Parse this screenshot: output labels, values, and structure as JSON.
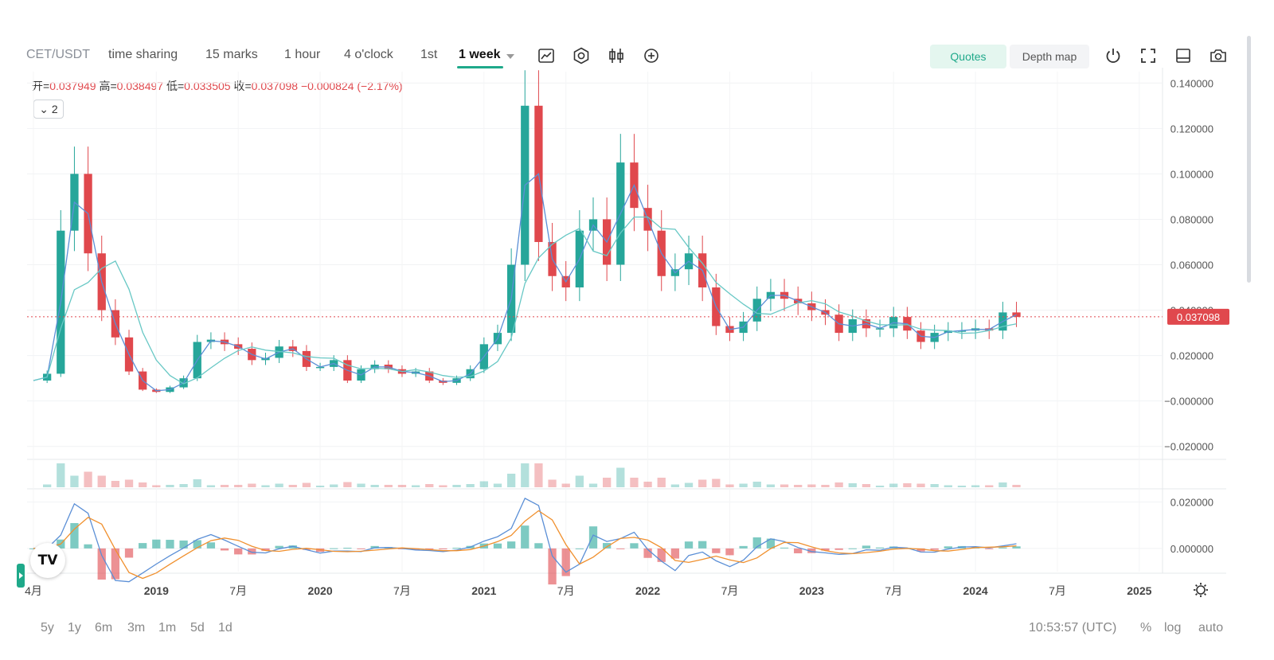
{
  "toolbar": {
    "symbol": "CET/USDT",
    "intervals": [
      "time sharing",
      "15 marks",
      "1 hour",
      "4 o'clock",
      "1st",
      "1 week"
    ],
    "active_interval": "1 week",
    "quotes_label": "Quotes",
    "depth_label": "Depth map"
  },
  "ohlc": {
    "open_label": "开=",
    "open": "0.037949",
    "high_label": "高=",
    "high": "0.038497",
    "low_label": "低=",
    "low": "0.033505",
    "close_label": "收=",
    "close": "0.037098",
    "change": "−0.000824 (−2.17%)"
  },
  "series_toggle": "2",
  "bottom_bar": {
    "ranges": [
      "5y",
      "1y",
      "6m",
      "3m",
      "1m",
      "5d",
      "1d"
    ],
    "clock": "10:53:57 (UTC)",
    "percent": "%",
    "log": "log",
    "auto": "auto"
  },
  "colors": {
    "up": "#26a69a",
    "down": "#e0484d",
    "ma_fast": "#5b8fd6",
    "ma_slow": "#68c8c5",
    "macd_signal": "#f0902e",
    "accent": "#1fa98a"
  },
  "chart_data": {
    "type": "candlestick",
    "symbol": "CET/USDT",
    "interval": "1 week",
    "price_axis": {
      "ticks": [
        "0.140000",
        "0.120000",
        "0.100000",
        "0.080000",
        "0.060000",
        "0.040000",
        "0.020000",
        "−0.000000",
        "−0.020000"
      ],
      "range": [
        -0.025,
        0.145
      ]
    },
    "time_axis": {
      "ticks": [
        "4月",
        "2019",
        "7月",
        "2020",
        "7月",
        "2021",
        "7月",
        "2022",
        "7月",
        "2023",
        "7月",
        "2024",
        "7月",
        "2025"
      ],
      "range": [
        "2018-04",
        "2025-02"
      ]
    },
    "last_price": "0.037098",
    "price_series": {
      "name": "",
      "points": [
        [
          "2018-04",
          0.009
        ],
        [
          "2018-05",
          0.012
        ],
        [
          "2018-06",
          0.075
        ],
        [
          "2018-07",
          0.1
        ],
        [
          "2018-08",
          0.065
        ],
        [
          "2018-09",
          0.04
        ],
        [
          "2018-10",
          0.028
        ],
        [
          "2018-11",
          0.013
        ],
        [
          "2018-12",
          0.005
        ],
        [
          "2019-01",
          0.004
        ],
        [
          "2019-02",
          0.006
        ],
        [
          "2019-03",
          0.01
        ],
        [
          "2019-04",
          0.026
        ],
        [
          "2019-05",
          0.027
        ],
        [
          "2019-06",
          0.025
        ],
        [
          "2019-07",
          0.023
        ],
        [
          "2019-08",
          0.018
        ],
        [
          "2019-09",
          0.019
        ],
        [
          "2019-10",
          0.024
        ],
        [
          "2019-11",
          0.022
        ],
        [
          "2019-12",
          0.015
        ],
        [
          "2020-01",
          0.015
        ],
        [
          "2020-02",
          0.018
        ],
        [
          "2020-03",
          0.009
        ],
        [
          "2020-04",
          0.014
        ],
        [
          "2020-05",
          0.016
        ],
        [
          "2020-06",
          0.014
        ],
        [
          "2020-07",
          0.012
        ],
        [
          "2020-08",
          0.013
        ],
        [
          "2020-09",
          0.009
        ],
        [
          "2020-10",
          0.008
        ],
        [
          "2020-11",
          0.01
        ],
        [
          "2020-12",
          0.014
        ],
        [
          "2021-01",
          0.025
        ],
        [
          "2021-02",
          0.03
        ],
        [
          "2021-03",
          0.06
        ],
        [
          "2021-04",
          0.13
        ],
        [
          "2021-05",
          0.07
        ],
        [
          "2021-06",
          0.055
        ],
        [
          "2021-07",
          0.05
        ],
        [
          "2021-08",
          0.075
        ],
        [
          "2021-09",
          0.08
        ],
        [
          "2021-10",
          0.06
        ],
        [
          "2021-11",
          0.105
        ],
        [
          "2021-12",
          0.085
        ],
        [
          "2022-01",
          0.075
        ],
        [
          "2022-02",
          0.055
        ],
        [
          "2022-03",
          0.058
        ],
        [
          "2022-04",
          0.065
        ],
        [
          "2022-05",
          0.05
        ],
        [
          "2022-06",
          0.033
        ],
        [
          "2022-07",
          0.03
        ],
        [
          "2022-08",
          0.035
        ],
        [
          "2022-09",
          0.045
        ],
        [
          "2022-10",
          0.048
        ],
        [
          "2022-11",
          0.045
        ],
        [
          "2022-12",
          0.043
        ],
        [
          "2023-01",
          0.04
        ],
        [
          "2023-02",
          0.038
        ],
        [
          "2023-03",
          0.03
        ],
        [
          "2023-04",
          0.036
        ],
        [
          "2023-05",
          0.032
        ],
        [
          "2023-06",
          0.032
        ],
        [
          "2023-07",
          0.037
        ],
        [
          "2023-08",
          0.031
        ],
        [
          "2023-09",
          0.026
        ],
        [
          "2023-10",
          0.03
        ],
        [
          "2023-11",
          0.031
        ],
        [
          "2023-12",
          0.031
        ],
        [
          "2024-01",
          0.032
        ],
        [
          "2024-02",
          0.031
        ],
        [
          "2024-03",
          0.039
        ],
        [
          "2024-04",
          0.037
        ]
      ]
    },
    "macd_axis": {
      "ticks": [
        "0.020000",
        "0.000000"
      ],
      "range": [
        -0.01,
        0.025
      ]
    }
  }
}
